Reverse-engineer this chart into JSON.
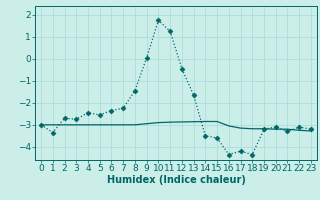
{
  "xlabel": "Humidex (Indice chaleur)",
  "bg_color": "#cceee8",
  "line_color": "#006666",
  "grid_color": "#aadddd",
  "font_color": "#006666",
  "xlim": [
    -0.5,
    23.5
  ],
  "ylim": [
    -4.6,
    2.4
  ],
  "yticks": [
    2,
    1,
    0,
    -1,
    -2,
    -3,
    -4
  ],
  "xticks": [
    0,
    1,
    2,
    3,
    4,
    5,
    6,
    7,
    8,
    9,
    10,
    11,
    12,
    13,
    14,
    15,
    16,
    17,
    18,
    19,
    20,
    21,
    22,
    23
  ],
  "line1_x": [
    0,
    1,
    2,
    3,
    4,
    5,
    6,
    7,
    8,
    9,
    10,
    11,
    12,
    13,
    14,
    15,
    16,
    17,
    18,
    19,
    20,
    21,
    22,
    23
  ],
  "line1_y": [
    -3.0,
    -3.35,
    -2.7,
    -2.75,
    -2.45,
    -2.55,
    -2.35,
    -2.25,
    -1.45,
    0.05,
    1.75,
    1.25,
    -0.45,
    -1.65,
    -3.5,
    -3.6,
    -4.35,
    -4.2,
    -4.35,
    -3.2,
    -3.1,
    -3.3,
    -3.1,
    -3.2
  ],
  "line2_x": [
    0,
    1,
    2,
    3,
    4,
    5,
    6,
    7,
    8,
    9,
    10,
    11,
    12,
    13,
    14,
    15,
    16,
    17,
    18,
    19,
    20,
    21,
    22,
    23
  ],
  "line2_y": [
    -3.0,
    -3.0,
    -3.0,
    -3.0,
    -3.0,
    -3.0,
    -3.0,
    -3.0,
    -3.0,
    -2.95,
    -2.9,
    -2.88,
    -2.87,
    -2.86,
    -2.85,
    -2.85,
    -3.05,
    -3.15,
    -3.18,
    -3.18,
    -3.2,
    -3.2,
    -3.25,
    -3.28
  ],
  "fontsize": 6.5,
  "xlabel_fontsize": 7.0,
  "marker_size": 2.5,
  "linewidth": 0.9
}
